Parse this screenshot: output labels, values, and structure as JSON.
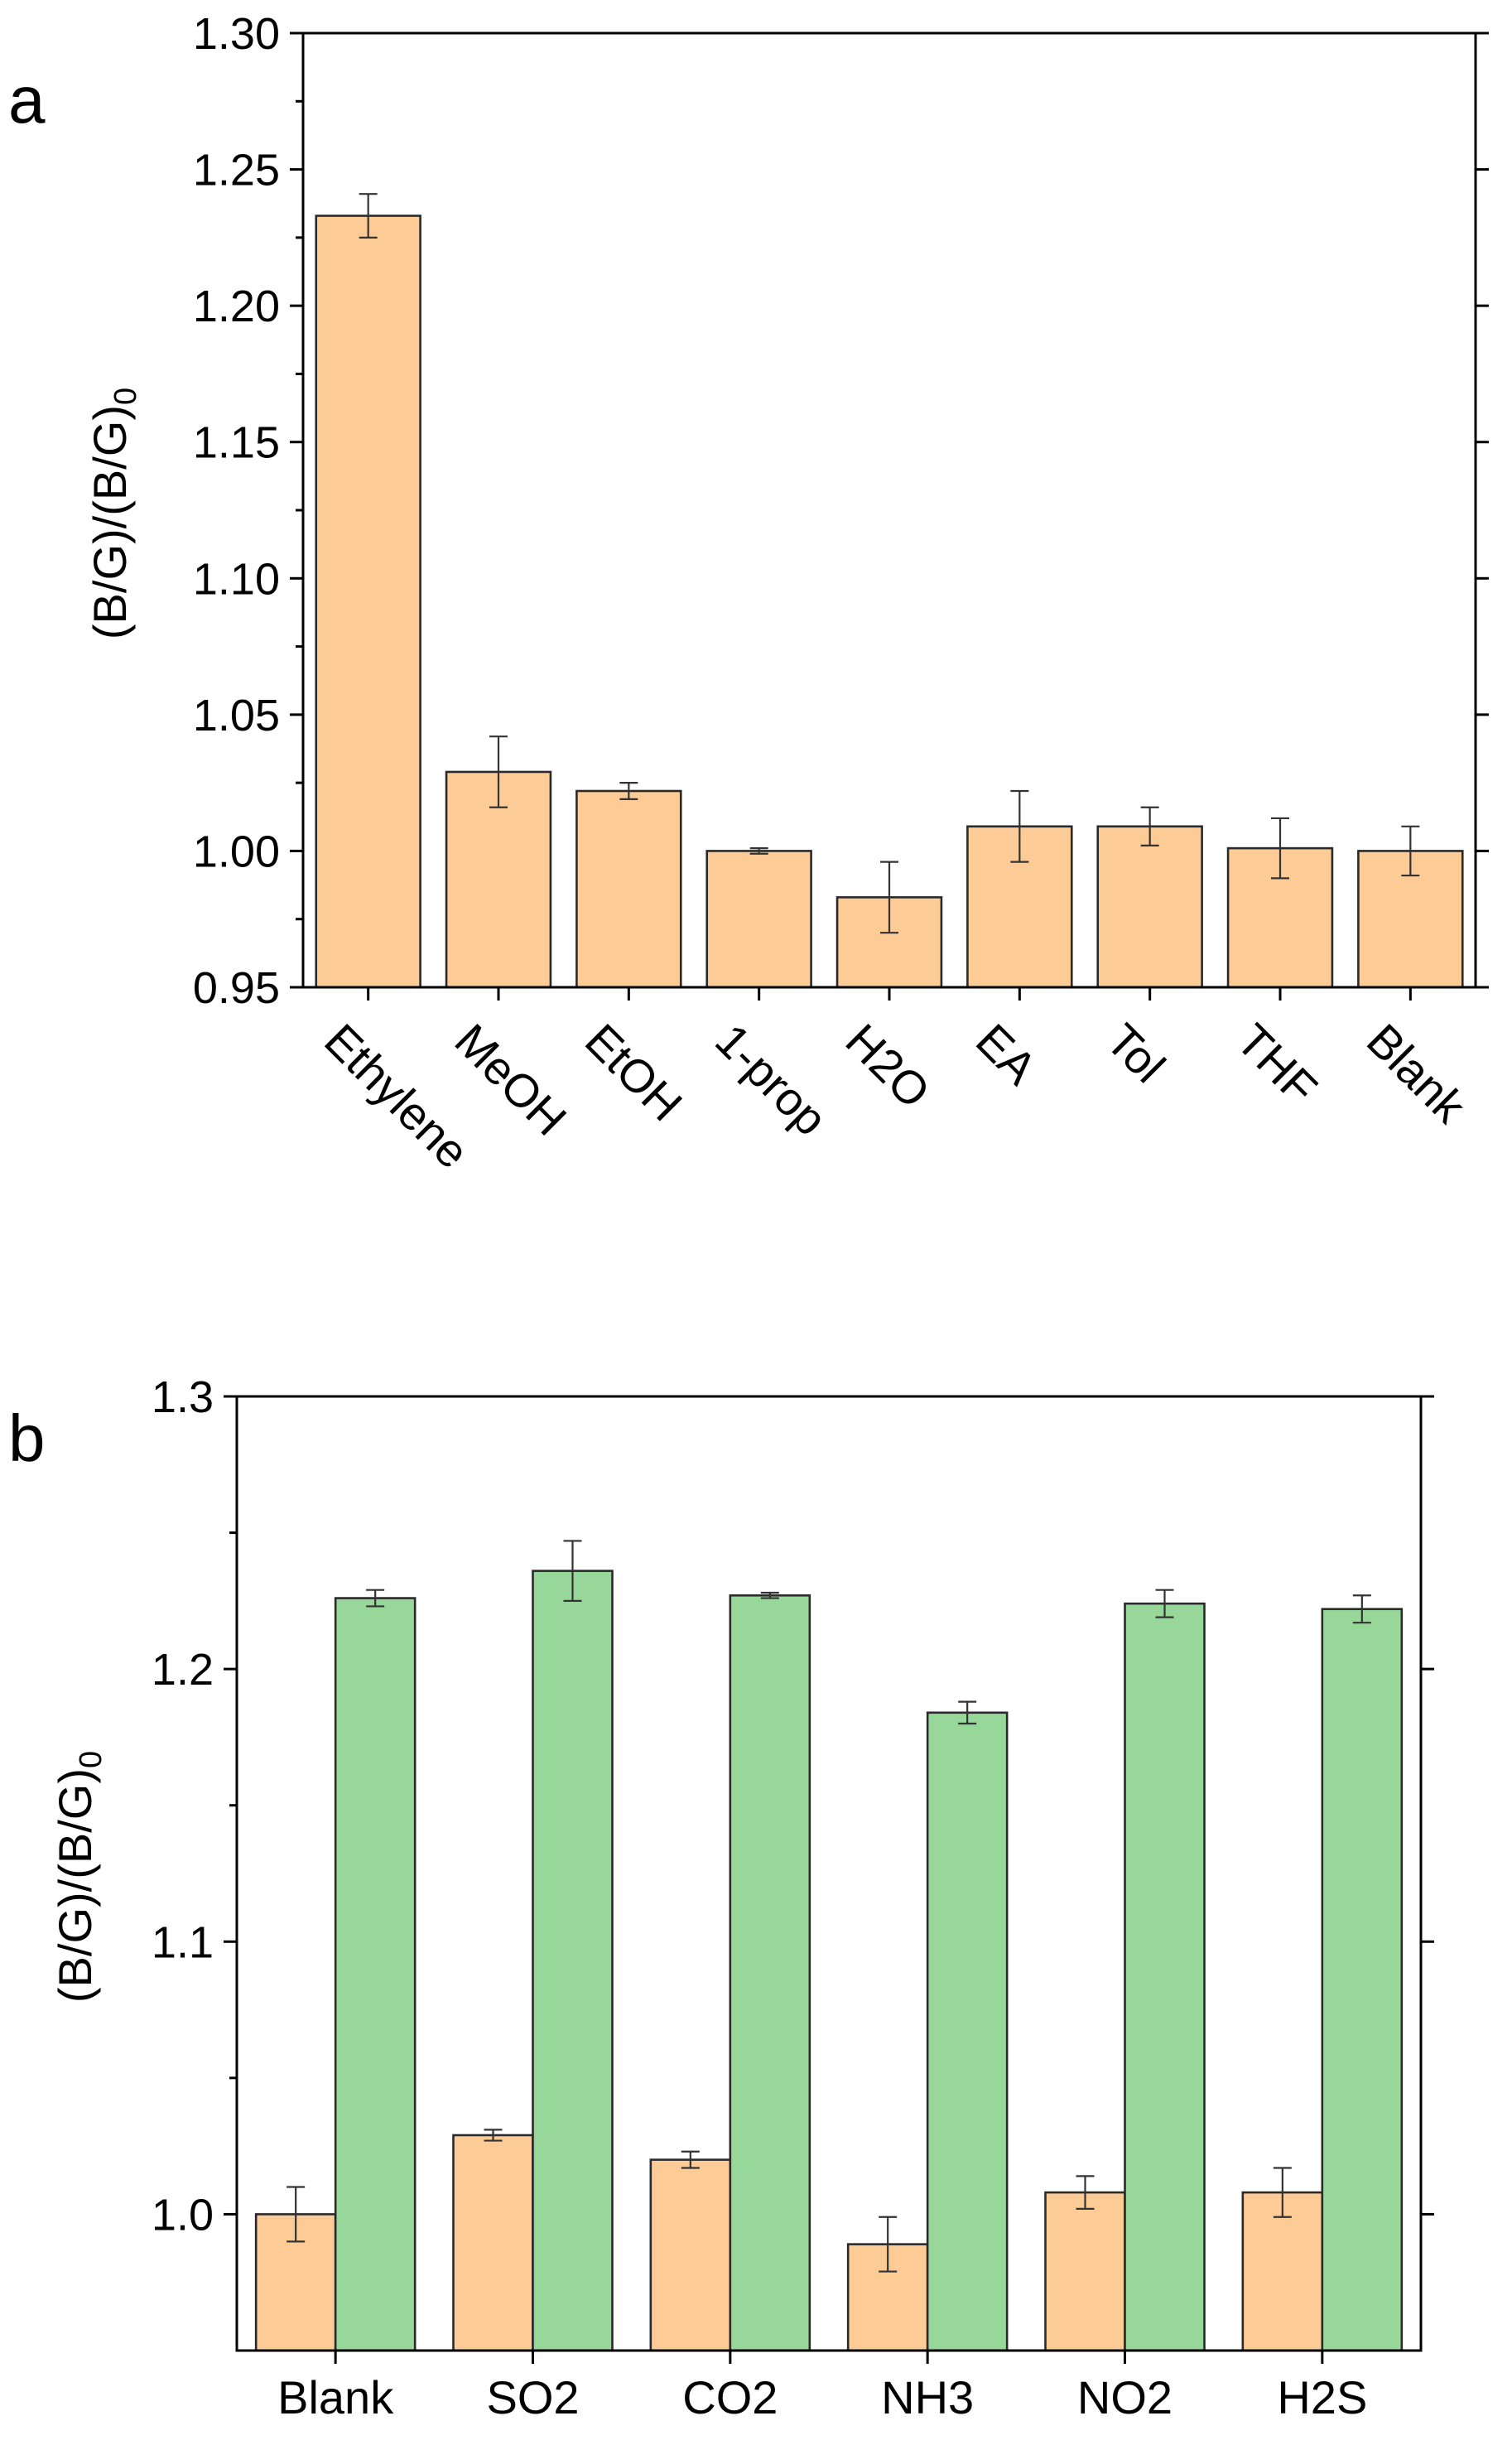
{
  "colors": {
    "before": "#FDCC96",
    "after": "#98D79A"
  },
  "chart_data": [
    {
      "panel_label": "a",
      "type": "bar",
      "ylabel": "(B/G)/(B/G)",
      "ylabel_subscript": "0",
      "ylim": [
        0.95,
        1.3
      ],
      "yticks": [
        "1.30",
        "1.25",
        "1.20",
        "1.15",
        "1.10",
        "1.05",
        "1.00",
        "0.95"
      ],
      "categories": [
        "Ethylene",
        "MeOH",
        "EtOH",
        "1-prop",
        "H2O",
        "EA",
        "Tol",
        "THF",
        "Blank"
      ],
      "series": [
        {
          "values": [
            1.233,
            1.029,
            1.022,
            1.0,
            0.983,
            1.009,
            1.009,
            1.001,
            1.0
          ],
          "errors": [
            0.008,
            0.013,
            0.003,
            0.001,
            0.013,
            0.013,
            0.007,
            0.011,
            0.009
          ]
        }
      ],
      "grid": false
    },
    {
      "panel_label": "b",
      "type": "bar",
      "ylabel": "(B/G)/(B/G)",
      "ylabel_subscript": "0",
      "ylim": [
        0.95,
        1.3
      ],
      "yticks": [
        "1.3",
        "1.2",
        "1.1",
        "1.0"
      ],
      "categories": [
        "Blank",
        "SO2",
        "CO2",
        "NH3",
        "NO2",
        "H2S"
      ],
      "series": [
        {
          "values": [
            1.0,
            1.029,
            1.02,
            0.989,
            1.008,
            1.008
          ],
          "errors": [
            0.01,
            0.002,
            0.003,
            0.01,
            0.006,
            0.009
          ]
        },
        {
          "values": [
            1.226,
            1.236,
            1.227,
            1.184,
            1.224,
            1.222
          ],
          "errors": [
            0.003,
            0.011,
            0.001,
            0.004,
            0.005,
            0.005
          ]
        }
      ],
      "grid": false
    }
  ]
}
